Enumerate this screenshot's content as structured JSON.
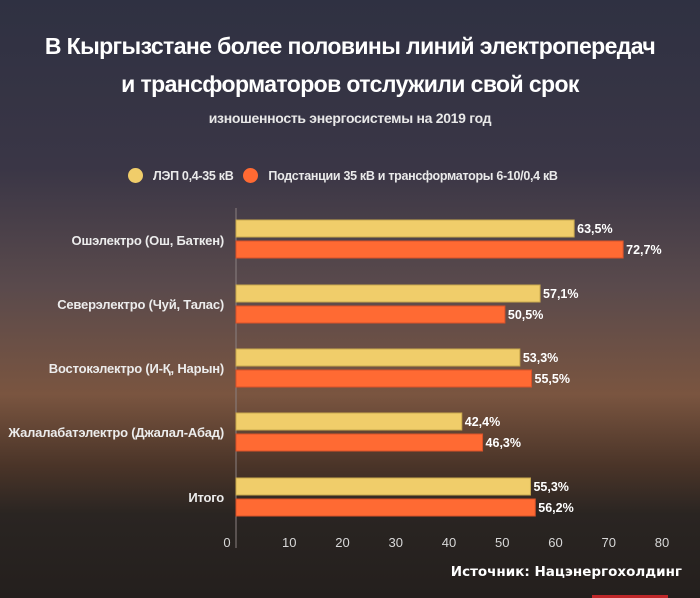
{
  "chart_data": {
    "type": "bar",
    "orientation": "horizontal",
    "title": "В Кыргызстане более половины линий электропередач и трансформаторов отслужили свой срок",
    "title_lines": [
      "В Кыргызстане более половины линий электропередач",
      "и трансформаторов отслужили свой срок"
    ],
    "subtitle": "изношенность энергосистемы на 2019 год",
    "categories": [
      "Ошэлектро (Ош, Баткен)",
      "Северэлектро (Чуй, Талас)",
      "Востокэлектро (И-Қ, Нарын)",
      "Жалалабатэлектро (Джалал-Абад)",
      "Итого"
    ],
    "series": [
      {
        "name": "ЛЭП 0,4-35 кВ",
        "color": "#f0cd6a",
        "values": [
          63.5,
          57.1,
          53.3,
          42.4,
          55.3
        ],
        "labels": [
          "63,5%",
          "57,1%",
          "53,3%",
          "42,4%",
          "55,3%"
        ]
      },
      {
        "name": "Подстанции 35 кВ и трансформаторы 6-10/0,4 кВ",
        "color": "#ff6a33",
        "values": [
          72.7,
          50.5,
          55.5,
          46.3,
          56.2
        ],
        "labels": [
          "72,7%",
          "50,5%",
          "55,5%",
          "46,3%",
          "56,2%"
        ]
      }
    ],
    "xlim": [
      0,
      80
    ],
    "xticks": [
      "0",
      "10",
      "20",
      "30",
      "40",
      "50",
      "60",
      "70",
      "80"
    ],
    "legend_position": "top",
    "grid": false,
    "source": "Источник: Нацэнергохолдинг"
  }
}
